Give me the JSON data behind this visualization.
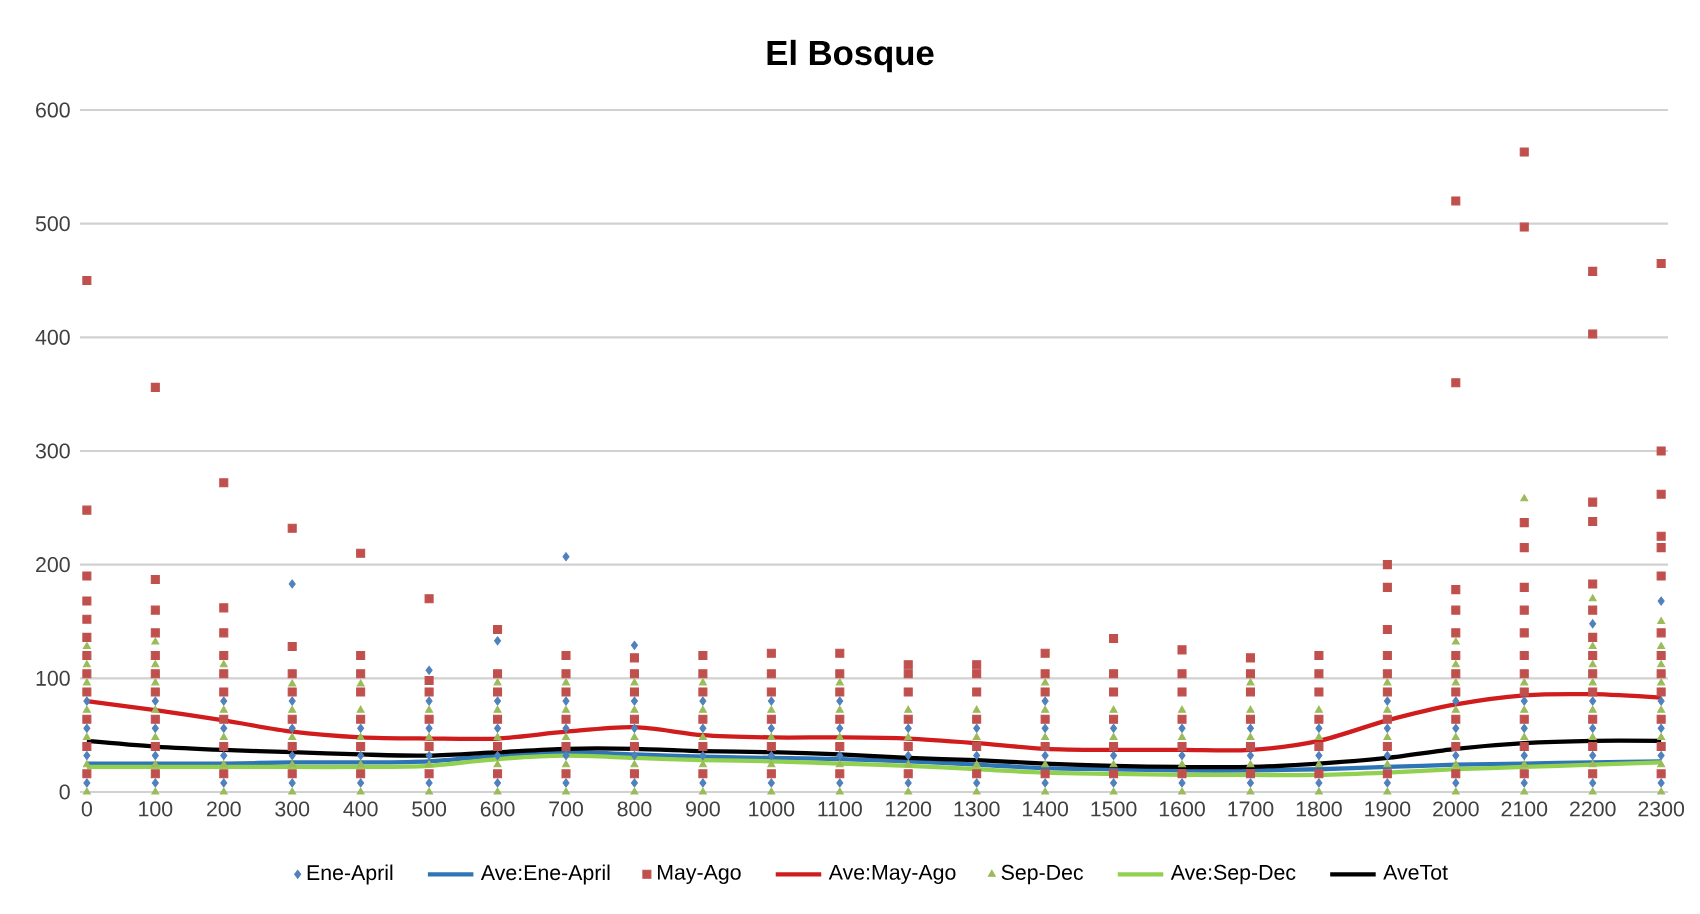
{
  "chart_data": {
    "type": "scatter",
    "title": "El Bosque",
    "x": [
      0,
      100,
      200,
      300,
      400,
      500,
      600,
      700,
      800,
      900,
      1000,
      1100,
      1200,
      1300,
      1400,
      1500,
      1600,
      1700,
      1800,
      1900,
      2000,
      2100,
      2200,
      2300
    ],
    "xlim": [
      -10,
      2310
    ],
    "xticks": [
      0,
      100,
      200,
      300,
      400,
      500,
      600,
      700,
      800,
      900,
      1000,
      1100,
      1200,
      1300,
      1400,
      1500,
      1600,
      1700,
      1800,
      1900,
      2000,
      2100,
      2200,
      2300
    ],
    "ylim": [
      0,
      600
    ],
    "yticks": [
      0,
      100,
      200,
      300,
      400,
      500,
      600
    ],
    "grid": "y",
    "legend": "bottom",
    "series": [
      {
        "name": "Ene-April",
        "marker": "diamond",
        "color": "#4f81bd",
        "x": [
          0,
          0,
          0,
          0,
          100,
          100,
          100,
          100,
          200,
          200,
          200,
          200,
          300,
          300,
          300,
          300,
          300,
          400,
          400,
          400,
          500,
          500,
          500,
          500,
          500,
          600,
          600,
          600,
          600,
          600,
          700,
          700,
          700,
          700,
          700,
          800,
          800,
          800,
          800,
          800,
          900,
          900,
          900,
          900,
          1000,
          1000,
          1000,
          1000,
          1100,
          1100,
          1100,
          1100,
          1200,
          1200,
          1200,
          1300,
          1300,
          1300,
          1400,
          1400,
          1400,
          1400,
          1500,
          1500,
          1500,
          1600,
          1600,
          1600,
          1700,
          1700,
          1700,
          1800,
          1800,
          1800,
          1900,
          1900,
          1900,
          1900,
          2000,
          2000,
          2000,
          2000,
          2100,
          2100,
          2100,
          2100,
          2200,
          2200,
          2200,
          2200,
          2200,
          2300,
          2300,
          2300,
          2300,
          2300
        ],
        "values": [
          8,
          32,
          56,
          80,
          8,
          32,
          56,
          80,
          8,
          32,
          56,
          80,
          8,
          32,
          56,
          80,
          183,
          8,
          32,
          56,
          8,
          32,
          56,
          80,
          107,
          8,
          32,
          56,
          80,
          133,
          8,
          32,
          56,
          80,
          207,
          8,
          32,
          56,
          80,
          129,
          8,
          32,
          56,
          80,
          8,
          32,
          56,
          80,
          8,
          32,
          56,
          80,
          8,
          32,
          56,
          8,
          32,
          56,
          8,
          32,
          56,
          80,
          8,
          32,
          56,
          8,
          32,
          56,
          8,
          32,
          56,
          8,
          32,
          56,
          8,
          32,
          56,
          80,
          8,
          32,
          56,
          80,
          8,
          32,
          56,
          80,
          8,
          32,
          56,
          80,
          148,
          8,
          32,
          56,
          80,
          168
        ]
      },
      {
        "name": "Ave:Ene-April",
        "type": "line",
        "marker": "none",
        "color": "#2e75b6",
        "values": [
          25,
          25,
          25,
          26,
          26,
          27,
          32,
          35,
          33,
          31,
          30,
          29,
          27,
          24,
          21,
          20,
          19,
          19,
          20,
          22,
          24,
          25,
          26,
          27
        ]
      },
      {
        "name": "May-Ago",
        "marker": "square",
        "color": "#c0504d",
        "x": [
          0,
          0,
          0,
          0,
          0,
          0,
          0,
          0,
          0,
          0,
          0,
          0,
          100,
          100,
          100,
          100,
          100,
          100,
          100,
          100,
          100,
          100,
          200,
          200,
          200,
          200,
          200,
          200,
          200,
          200,
          200,
          300,
          300,
          300,
          300,
          300,
          300,
          300,
          400,
          400,
          400,
          400,
          400,
          400,
          400,
          500,
          500,
          500,
          500,
          500,
          500,
          600,
          600,
          600,
          600,
          600,
          600,
          700,
          700,
          700,
          700,
          700,
          700,
          800,
          800,
          800,
          800,
          800,
          800,
          900,
          900,
          900,
          900,
          900,
          900,
          1000,
          1000,
          1000,
          1000,
          1000,
          1000,
          1100,
          1100,
          1100,
          1100,
          1100,
          1100,
          1200,
          1200,
          1200,
          1200,
          1200,
          1200,
          1300,
          1300,
          1300,
          1300,
          1300,
          1300,
          1400,
          1400,
          1400,
          1400,
          1400,
          1400,
          1500,
          1500,
          1500,
          1500,
          1500,
          1500,
          1600,
          1600,
          1600,
          1600,
          1600,
          1600,
          1700,
          1700,
          1700,
          1700,
          1700,
          1700,
          1800,
          1800,
          1800,
          1800,
          1800,
          1800,
          1900,
          1900,
          1900,
          1900,
          1900,
          1900,
          1900,
          1900,
          1900,
          2000,
          2000,
          2000,
          2000,
          2000,
          2000,
          2000,
          2000,
          2000,
          2000,
          2000,
          2100,
          2100,
          2100,
          2100,
          2100,
          2100,
          2100,
          2100,
          2100,
          2100,
          2100,
          2100,
          2100,
          2200,
          2200,
          2200,
          2200,
          2200,
          2200,
          2200,
          2200,
          2200,
          2200,
          2200,
          2200,
          2200,
          2300,
          2300,
          2300,
          2300,
          2300,
          2300,
          2300,
          2300,
          2300,
          2300,
          2300,
          2300,
          2300
        ],
        "values": [
          16,
          40,
          64,
          88,
          104,
          120,
          136,
          152,
          168,
          190,
          248,
          450,
          16,
          40,
          64,
          88,
          104,
          120,
          140,
          160,
          187,
          356,
          16,
          40,
          64,
          88,
          104,
          120,
          140,
          162,
          272,
          16,
          40,
          64,
          88,
          104,
          128,
          232,
          16,
          40,
          64,
          88,
          104,
          120,
          210,
          16,
          40,
          64,
          88,
          98,
          170,
          16,
          40,
          64,
          88,
          104,
          143,
          16,
          40,
          64,
          88,
          104,
          120,
          16,
          40,
          64,
          88,
          104,
          118,
          16,
          40,
          64,
          88,
          104,
          120,
          16,
          40,
          64,
          88,
          104,
          122,
          16,
          40,
          64,
          88,
          104,
          122,
          16,
          40,
          64,
          88,
          104,
          112,
          16,
          40,
          64,
          88,
          104,
          112,
          16,
          40,
          64,
          88,
          104,
          122,
          16,
          40,
          64,
          88,
          104,
          135,
          16,
          40,
          64,
          88,
          104,
          125,
          16,
          40,
          64,
          88,
          104,
          118,
          16,
          40,
          64,
          88,
          104,
          120,
          16,
          40,
          64,
          88,
          104,
          120,
          143,
          180,
          200,
          16,
          40,
          64,
          88,
          104,
          120,
          140,
          160,
          178,
          360,
          520,
          16,
          40,
          64,
          88,
          104,
          120,
          140,
          160,
          180,
          215,
          237,
          497,
          563,
          16,
          40,
          64,
          88,
          104,
          120,
          136,
          160,
          183,
          238,
          255,
          403,
          458,
          16,
          40,
          64,
          88,
          104,
          120,
          140,
          190,
          215,
          225,
          262,
          300,
          465
        ]
      },
      {
        "name": "Ave:May-Ago",
        "type": "line",
        "marker": "none",
        "color": "#d01c1c",
        "values": [
          80,
          72,
          63,
          53,
          48,
          47,
          47,
          53,
          57,
          50,
          48,
          48,
          47,
          43,
          38,
          37,
          37,
          37,
          45,
          63,
          77,
          85,
          86,
          83
        ]
      },
      {
        "name": "Sep-Dec",
        "marker": "triangle",
        "color": "#9bbb59",
        "x": [
          0,
          0,
          0,
          0,
          0,
          0,
          0,
          100,
          100,
          100,
          100,
          100,
          100,
          100,
          200,
          200,
          200,
          200,
          200,
          300,
          300,
          300,
          300,
          300,
          400,
          400,
          400,
          400,
          400,
          500,
          500,
          500,
          500,
          600,
          600,
          600,
          600,
          600,
          700,
          700,
          700,
          700,
          700,
          800,
          800,
          800,
          800,
          800,
          900,
          900,
          900,
          900,
          900,
          1000,
          1000,
          1000,
          1000,
          1100,
          1100,
          1100,
          1100,
          1100,
          1200,
          1200,
          1200,
          1200,
          1300,
          1300,
          1300,
          1300,
          1400,
          1400,
          1400,
          1400,
          1400,
          1500,
          1500,
          1500,
          1500,
          1600,
          1600,
          1600,
          1600,
          1700,
          1700,
          1700,
          1700,
          1700,
          1800,
          1800,
          1800,
          1800,
          1900,
          1900,
          1900,
          1900,
          1900,
          2000,
          2000,
          2000,
          2000,
          2000,
          2000,
          2000,
          2100,
          2100,
          2100,
          2100,
          2100,
          2100,
          2200,
          2200,
          2200,
          2200,
          2200,
          2200,
          2200,
          2200,
          2300,
          2300,
          2300,
          2300,
          2300,
          2300,
          2300,
          2300
        ],
        "values": [
          0,
          24,
          48,
          72,
          96,
          112,
          128,
          0,
          24,
          48,
          72,
          96,
          112,
          132,
          0,
          24,
          48,
          72,
          112,
          0,
          24,
          48,
          72,
          95,
          0,
          24,
          48,
          72,
          95,
          0,
          24,
          48,
          72,
          0,
          24,
          48,
          72,
          96,
          0,
          24,
          48,
          72,
          96,
          0,
          24,
          48,
          72,
          96,
          0,
          24,
          48,
          72,
          96,
          0,
          24,
          48,
          72,
          0,
          24,
          48,
          72,
          96,
          0,
          24,
          48,
          72,
          0,
          24,
          48,
          72,
          0,
          24,
          48,
          72,
          96,
          0,
          24,
          48,
          72,
          0,
          24,
          48,
          72,
          0,
          24,
          48,
          72,
          96,
          0,
          24,
          48,
          72,
          0,
          24,
          48,
          72,
          96,
          0,
          24,
          48,
          72,
          96,
          112,
          132,
          0,
          24,
          48,
          72,
          96,
          258,
          0,
          24,
          48,
          72,
          96,
          112,
          128,
          170,
          0,
          24,
          48,
          72,
          96,
          112,
          128,
          150
        ]
      },
      {
        "name": "Ave:Sep-Dec",
        "type": "line",
        "marker": "none",
        "color": "#92d050",
        "values": [
          22,
          22,
          22,
          22,
          22,
          23,
          29,
          32,
          30,
          28,
          27,
          25,
          23,
          20,
          17,
          16,
          15,
          15,
          15,
          17,
          20,
          22,
          24,
          26
        ]
      },
      {
        "name": "AveTot",
        "type": "line",
        "marker": "none",
        "color": "#000000",
        "values": [
          45,
          40,
          37,
          35,
          33,
          32,
          35,
          38,
          38,
          36,
          35,
          33,
          30,
          28,
          25,
          23,
          22,
          22,
          25,
          30,
          38,
          43,
          45,
          45
        ]
      }
    ]
  }
}
